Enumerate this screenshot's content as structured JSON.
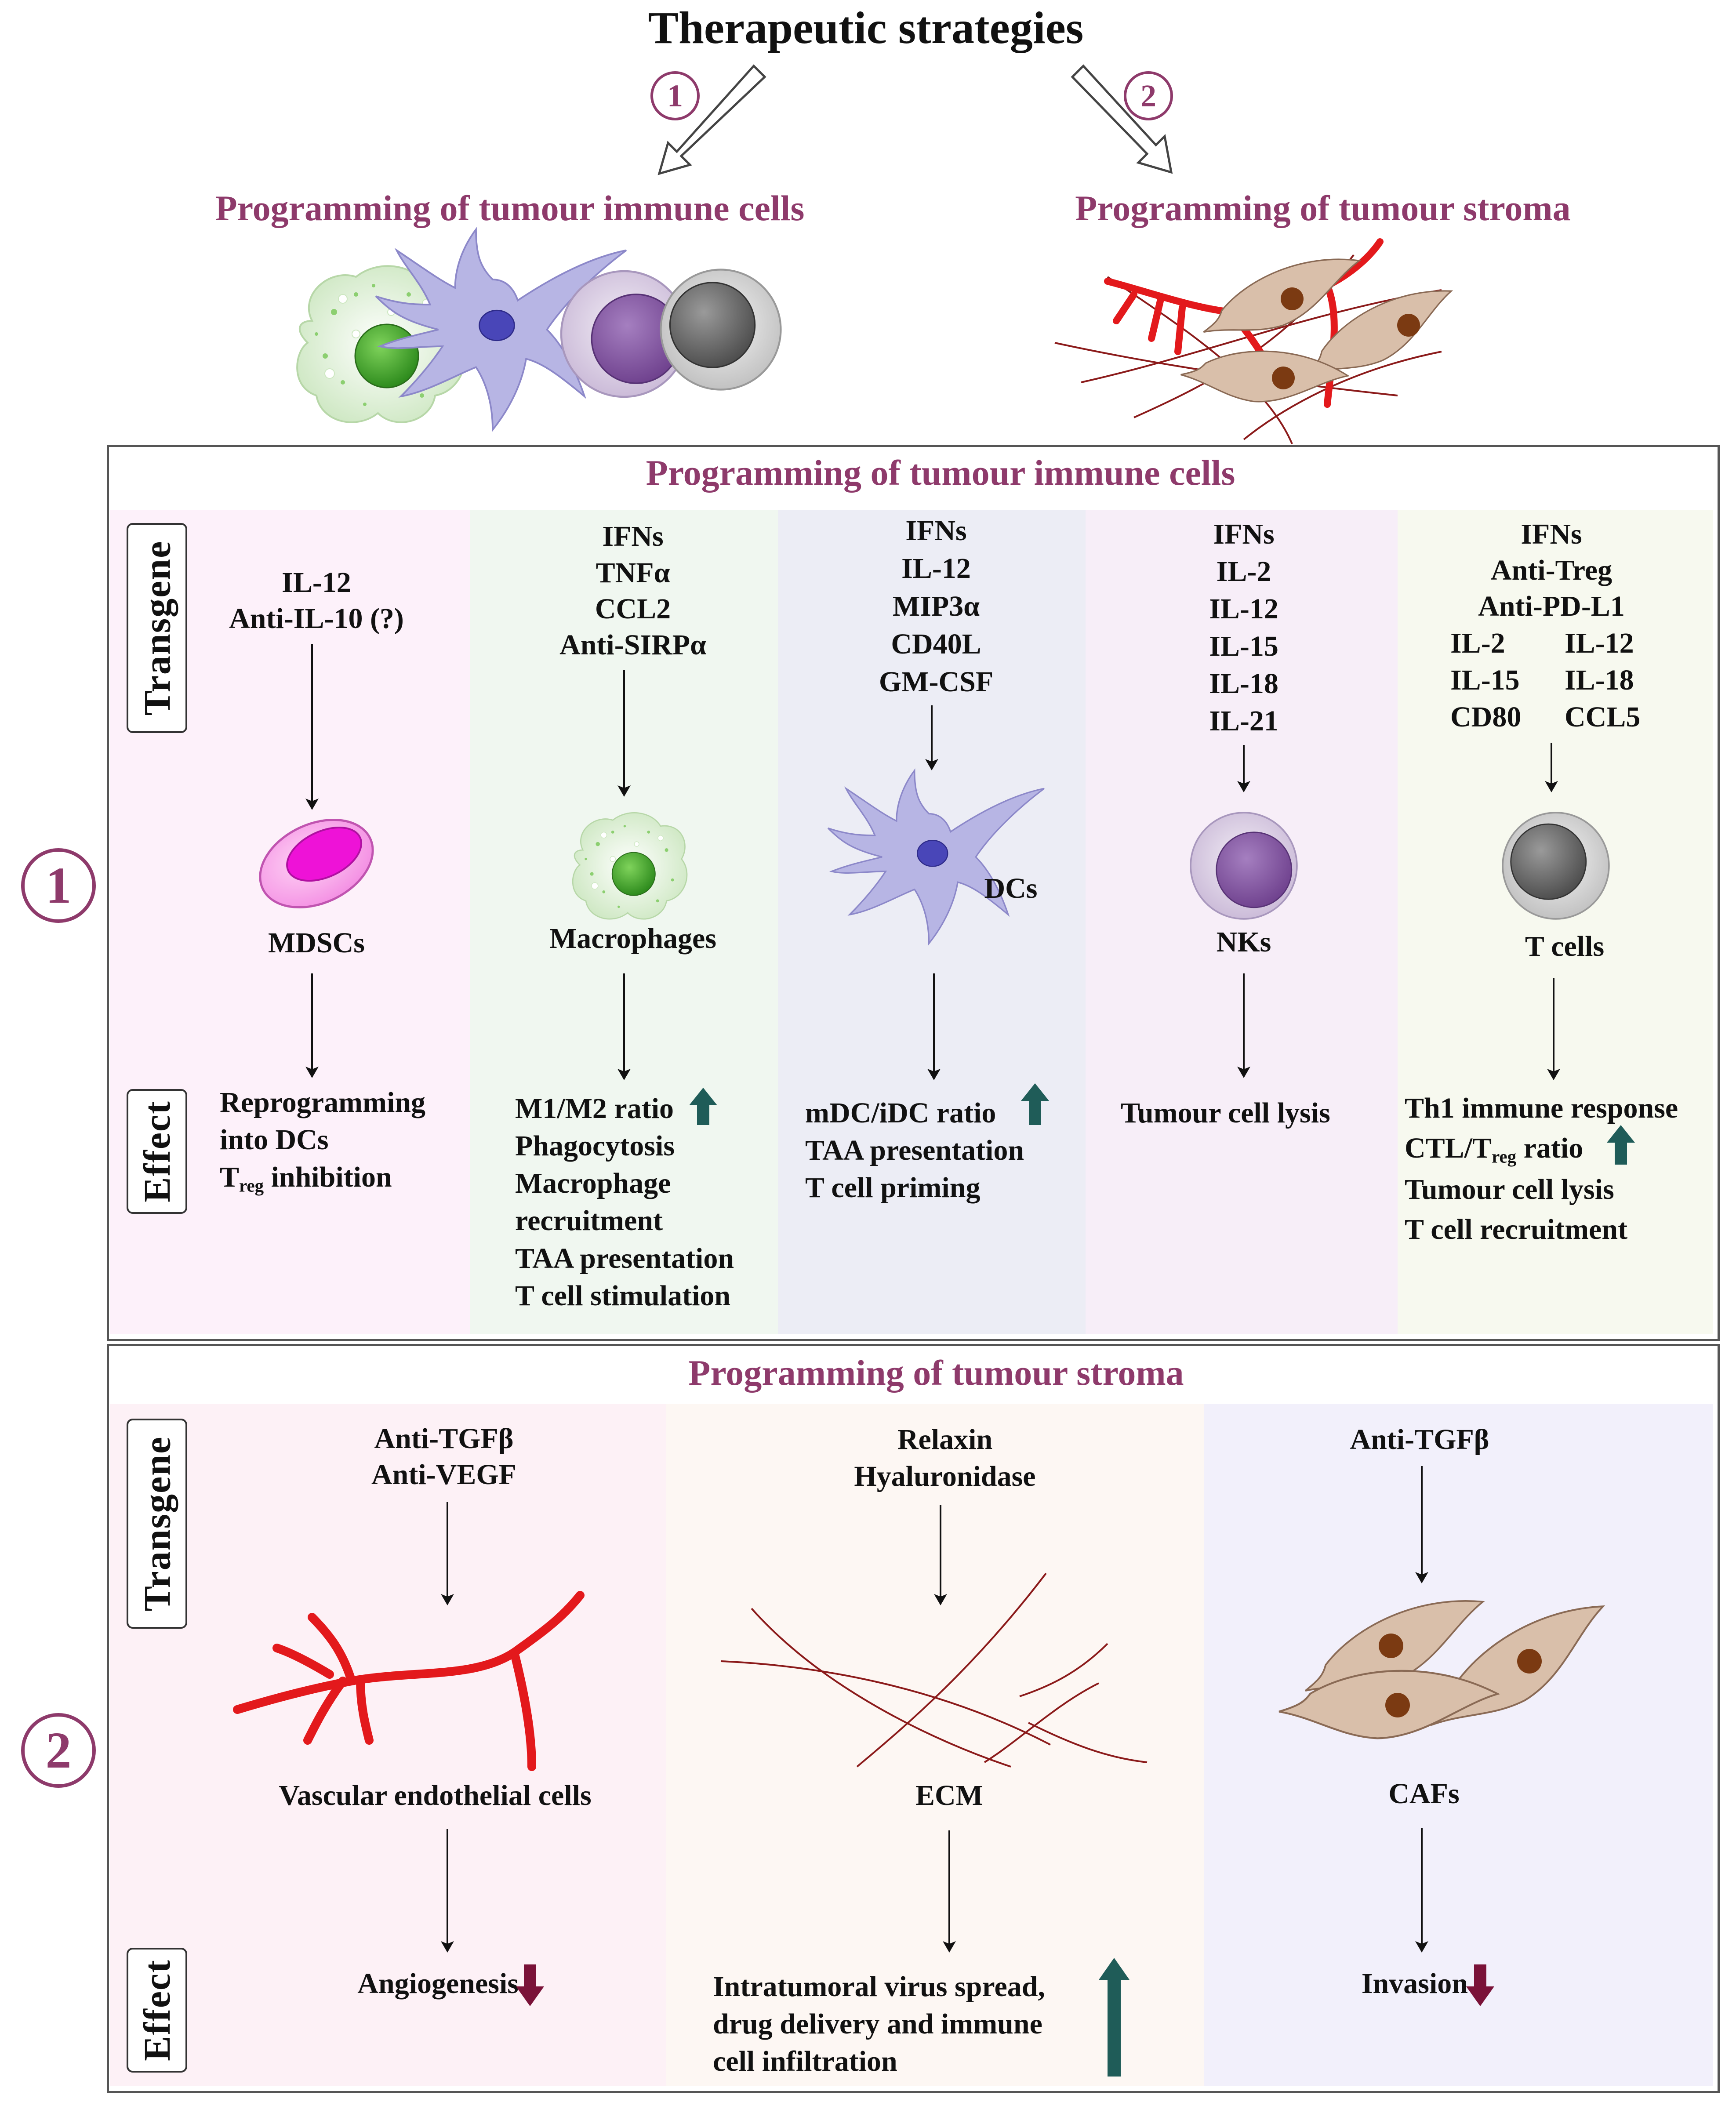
{
  "header": {
    "title": "Therapeutic strategies",
    "strategy1_number": "1",
    "strategy2_number": "2",
    "strategy1_label": "Programming of tumour immune cells",
    "strategy2_label": "Programming of tumour stroma"
  },
  "panel1": {
    "number": "1",
    "title": "Programming of tumour immune cells",
    "transgene_label": "Transgene",
    "effect_label": "Effect",
    "columns": [
      {
        "cell": "MDSCs",
        "transgenes": [
          "IL-12",
          "Anti-IL-10 (?)"
        ],
        "effects": [
          "Reprogramming",
          "into DCs",
          "inhibition"
        ],
        "treg_T": "T",
        "treg_sub": "reg"
      },
      {
        "cell": "Macrophages",
        "transgenes": [
          "IFNs",
          "TNFα",
          "CCL2",
          "Anti-SIRPα"
        ],
        "effects": [
          "M1/M2 ratio",
          "Phagocytosis",
          "Macrophage",
          "recruitment",
          "TAA  presentation",
          "T cell stimulation"
        ]
      },
      {
        "cell": "DCs",
        "transgenes": [
          "IFNs",
          "IL-12",
          "MIP3α",
          "CD40L",
          "GM-CSF"
        ],
        "effects": [
          "mDC/iDC ratio",
          "TAA  presentation",
          "T cell priming"
        ]
      },
      {
        "cell": "NKs",
        "transgenes": [
          "IFNs",
          "IL-2",
          "IL-12",
          "IL-15",
          "IL-18",
          "IL-21"
        ],
        "effects": [
          "Tumour  cell lysis"
        ]
      },
      {
        "cell": "T cells",
        "transgenes": [
          "IFNs",
          "Anti-Treg",
          "Anti-PD-L1",
          "IL-2",
          "IL-12",
          "IL-15",
          "IL-18",
          "CD80",
          "CCL5"
        ],
        "effects": [
          "Th1 immune response",
          "CTL/T",
          "ratio",
          "Tumour  cell lysis",
          "T cell recruitment"
        ],
        "ctl_sub": "reg"
      }
    ]
  },
  "panel2": {
    "number": "2",
    "title": "Programming of tumour stroma",
    "transgene_label": "Transgene",
    "effect_label": "Effect",
    "columns": [
      {
        "cell": "Vascular  endothelial cells",
        "transgenes": [
          "Anti-TGFβ",
          "Anti-VEGF"
        ],
        "effects": [
          "Angiogenesis"
        ]
      },
      {
        "cell": "ECM",
        "transgenes": [
          "Relaxin",
          "Hyaluronidase"
        ],
        "effects": [
          "Intratumoral virus spread,",
          "drug delivery and immune",
          "cell infiltration"
        ]
      },
      {
        "cell": "CAFs",
        "transgenes": [
          "Anti-TGFβ"
        ],
        "effects": [
          "Invasion"
        ]
      }
    ]
  },
  "colors": {
    "accent": "#8e3a6b",
    "up_arrow": "#1f5c58",
    "down_arrow": "#7a1238",
    "vessel": "#e3191c",
    "ecm_fiber": "#8b1a1a",
    "caf_body": "#d9bfaa",
    "caf_nucleus": "#7b3a12"
  },
  "icons": [
    "up-arrow-icon",
    "down-arrow-icon",
    "mdsc-cell-icon",
    "macrophage-cell-icon",
    "dendritic-cell-icon",
    "nk-cell-icon",
    "t-cell-icon",
    "blood-vessel-icon",
    "ecm-fibers-icon",
    "caf-cells-icon"
  ]
}
